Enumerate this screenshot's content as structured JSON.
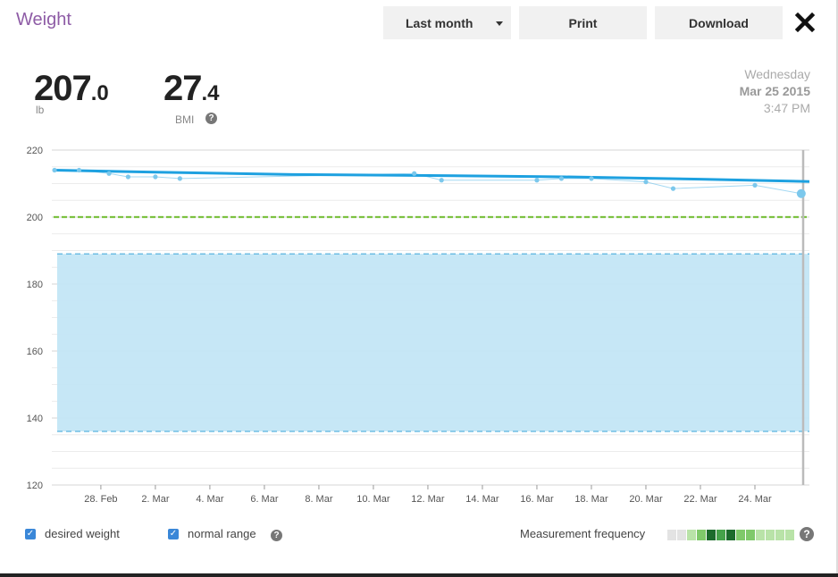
{
  "header": {
    "title": "Weight",
    "period_label": "Last month",
    "print_label": "Print",
    "download_label": "Download"
  },
  "summary": {
    "weight_int": "207",
    "weight_dec": ".0",
    "weight_unit": "lb",
    "bmi_int": "27",
    "bmi_dec": ".4",
    "bmi_label": "BMI"
  },
  "timestamp": {
    "weekday": "Wednesday",
    "date": "Mar 25 2015",
    "time": "3:47 PM"
  },
  "legend": {
    "desired_weight": "desired weight",
    "normal_range": "normal range",
    "measurement_frequency": "Measurement frequency"
  },
  "help_glyph": "?",
  "check_glyph": "✓",
  "colors": {
    "title": "#8e5ca6",
    "trend": "#1ea1e0",
    "measurements": "#7cc8ec",
    "desired": "#7dc242",
    "normal_range_fill": "#c3e6f6",
    "normal_range_edge": "#5ab4e0"
  },
  "frequency_levels": [
    0,
    0,
    1,
    2,
    4,
    3,
    4,
    2,
    2,
    1,
    1,
    1,
    1
  ],
  "chart_data": {
    "type": "line",
    "xlabel": "",
    "ylabel": "",
    "x_range": [
      26.2,
      54.0
    ],
    "ylim": [
      120,
      220
    ],
    "y_ticks": [
      120,
      140,
      160,
      180,
      200,
      220
    ],
    "x_ticks": [
      {
        "x": 28,
        "label": "28. Feb"
      },
      {
        "x": 30,
        "label": "2. Mar"
      },
      {
        "x": 32,
        "label": "4. Mar"
      },
      {
        "x": 34,
        "label": "6. Mar"
      },
      {
        "x": 36,
        "label": "8. Mar"
      },
      {
        "x": 38,
        "label": "10. Mar"
      },
      {
        "x": 40,
        "label": "12. Mar"
      },
      {
        "x": 42,
        "label": "14. Mar"
      },
      {
        "x": 44,
        "label": "16. Mar"
      },
      {
        "x": 46,
        "label": "18. Mar"
      },
      {
        "x": 48,
        "label": "20. Mar"
      },
      {
        "x": 50,
        "label": "22. Mar"
      },
      {
        "x": 52,
        "label": "24. Mar"
      }
    ],
    "grid": true,
    "series": [
      {
        "kind": "measurements",
        "x": [
          26.3,
          27.2,
          28.3,
          29.0,
          30.0,
          30.9,
          39.5,
          40.5,
          44.0,
          44.9,
          46.0,
          48.0,
          49.0,
          52.0,
          53.7
        ],
        "values": [
          214,
          214,
          213,
          212,
          212,
          211.5,
          213,
          211,
          211,
          211.5,
          211.5,
          210.5,
          208.5,
          209.5,
          207
        ]
      },
      {
        "kind": "trend",
        "x": [
          26.3,
          30.0,
          35.0,
          40.0,
          45.0,
          50.0,
          54.0
        ],
        "values": [
          214,
          213.4,
          212.7,
          212.4,
          212.0,
          211.3,
          210.6
        ]
      }
    ],
    "desired_weight": 200,
    "normal_range": [
      136,
      189
    ]
  }
}
